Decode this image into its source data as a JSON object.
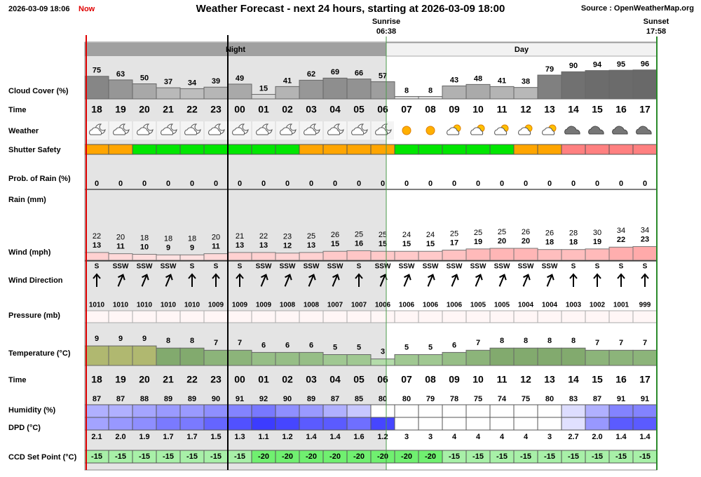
{
  "header": {
    "timestamp": "2026-03-09 18:06",
    "now": "Now",
    "title": "Weather Forecast - next 24 hours, starting at 2026-03-09 18:00",
    "source": "Source : OpenWeatherMap.org"
  },
  "sun": {
    "sunrise_label": "Sunrise",
    "sunrise": "06:38",
    "sunset_label": "Sunset",
    "sunset": "17:58"
  },
  "periods": {
    "night": "Night",
    "day": "Day"
  },
  "labels": {
    "cloud_cover": "Cloud Cover (%)",
    "time": "Time",
    "weather": "Weather",
    "shutter": "Shutter Safety",
    "rain_prob": "Prob. of Rain (%)",
    "rain": "Rain (mm)",
    "wind": "Wind (mph)",
    "wind_direction": "Wind Direction",
    "pressure": "Pressure (mb)",
    "temperature": "Temperature (°C)",
    "humidity": "Humidity (%)",
    "dpd": "DPD (°C)",
    "ccd": "CCD Set Point (°C)"
  },
  "hours": [
    "18",
    "19",
    "20",
    "21",
    "22",
    "23",
    "00",
    "01",
    "02",
    "03",
    "04",
    "05",
    "06",
    "07",
    "08",
    "09",
    "10",
    "11",
    "12",
    "13",
    "14",
    "15",
    "16",
    "17"
  ],
  "cloud_cover": [
    75,
    63,
    50,
    37,
    34,
    39,
    49,
    15,
    41,
    62,
    69,
    66,
    57,
    8,
    8,
    43,
    48,
    41,
    38,
    79,
    90,
    94,
    95,
    96
  ],
  "shutter_colors": [
    "#ffa500",
    "#ffa500",
    "#00e600",
    "#00e600",
    "#00e600",
    "#00e600",
    "#00e600",
    "#00e600",
    "#00e600",
    "#ffa500",
    "#ffa500",
    "#ffa500",
    "#ffa500",
    "#00e600",
    "#00e600",
    "#00e600",
    "#00e600",
    "#00e600",
    "#ffa500",
    "#ffa500",
    "#ff8080",
    "#ff8080",
    "#ff8080",
    "#ff8080"
  ],
  "rain_prob": [
    0,
    0,
    0,
    0,
    0,
    0,
    0,
    0,
    0,
    0,
    0,
    0,
    0,
    0,
    0,
    0,
    0,
    0,
    0,
    0,
    0,
    0,
    0,
    0
  ],
  "wind_gust": [
    22,
    20,
    18,
    18,
    18,
    20,
    21,
    22,
    23,
    25,
    26,
    25,
    25,
    24,
    24,
    25,
    25,
    25,
    26,
    26,
    28,
    30,
    34,
    34
  ],
  "wind_speed": [
    13,
    11,
    10,
    9,
    9,
    11,
    13,
    13,
    12,
    13,
    15,
    16,
    15,
    15,
    15,
    17,
    19,
    20,
    20,
    18,
    18,
    19,
    22,
    23
  ],
  "wind_direction": [
    "S",
    "SSW",
    "SSW",
    "SSW",
    "S",
    "S",
    "S",
    "SSW",
    "SSW",
    "SSW",
    "SSW",
    "S",
    "SSW",
    "SSW",
    "SSW",
    "SSW",
    "SSW",
    "SSW",
    "SSW",
    "SSW",
    "S",
    "S",
    "S",
    "S"
  ],
  "pressure": [
    1010,
    1010,
    1010,
    1010,
    1010,
    1009,
    1009,
    1009,
    1008,
    1008,
    1007,
    1007,
    1006,
    1006,
    1006,
    1006,
    1005,
    1005,
    1004,
    1004,
    1003,
    1002,
    1001,
    999
  ],
  "temperature": [
    9,
    9,
    9,
    8,
    8,
    7,
    7,
    6,
    6,
    6,
    5,
    5,
    3,
    5,
    5,
    6,
    7,
    8,
    8,
    8,
    8,
    7,
    7,
    7
  ],
  "humidity": [
    87,
    87,
    88,
    89,
    89,
    90,
    91,
    92,
    90,
    89,
    87,
    85,
    80,
    80,
    79,
    78,
    75,
    74,
    75,
    80,
    83,
    87,
    91,
    91
  ],
  "dpd": [
    "2.1",
    "2.0",
    "1.9",
    "1.7",
    "1.7",
    "1.5",
    "1.3",
    "1.1",
    "1.2",
    "1.4",
    "1.4",
    "1.6",
    "1.2",
    "3",
    "3",
    "4",
    "4",
    "4",
    "4",
    "3",
    "2.7",
    "2.0",
    "1.4",
    "1.4"
  ],
  "ccd": [
    -15,
    -15,
    -15,
    -15,
    -15,
    -15,
    -15,
    -20,
    -20,
    -20,
    -20,
    -20,
    -20,
    -20,
    -20,
    -15,
    -15,
    -15,
    -15,
    -15,
    -15,
    -15,
    -15,
    -15
  ]
}
